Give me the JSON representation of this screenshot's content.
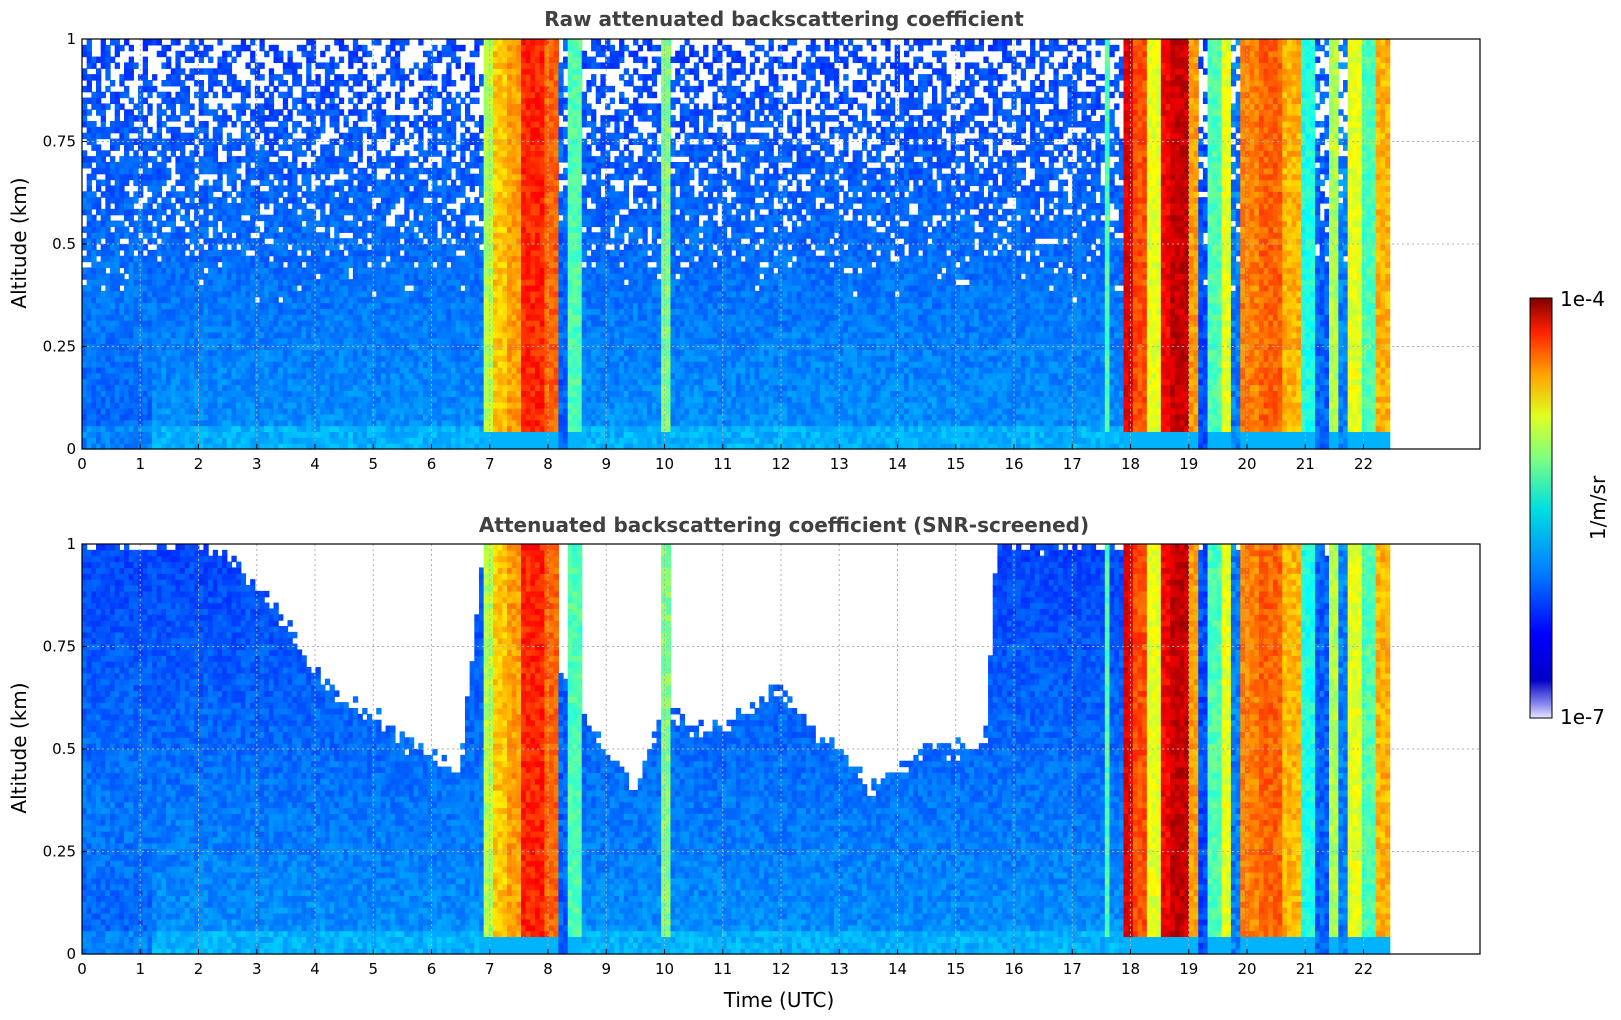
{
  "colors": {
    "title": "#404040",
    "grid": "#b0b0b0",
    "colormap": "jet"
  },
  "colorbar": {
    "label": "1/m/sr",
    "max_label": "1e-4",
    "min_label": "1e-7",
    "range": [
      1e-07,
      0.0001
    ],
    "scale": "log"
  },
  "chart_data": [
    {
      "type": "heatmap",
      "title": "Raw attenuated backscattering coefficient",
      "xlabel": "",
      "ylabel": "Altitude (km)",
      "xlim": [
        0,
        24
      ],
      "ylim": [
        0,
        1
      ],
      "grid": true,
      "x_ticks": [
        "0",
        "1",
        "2",
        "3",
        "4",
        "5",
        "6",
        "7",
        "8",
        "9",
        "10",
        "11",
        "12",
        "13",
        "14",
        "15",
        "16",
        "17",
        "18",
        "19",
        "20",
        "21",
        "22"
      ],
      "y_ticks": [
        "0",
        "0.25",
        "0.5",
        "0.75",
        "1"
      ],
      "data_end_hour": 22.45,
      "screened": false,
      "profiles": [
        {
          "hours": [
            0,
            6.9
          ],
          "level": "low-blue",
          "noise_above_km": 0.35
        },
        {
          "hours": [
            6.9,
            7.3
          ],
          "level": "green-yellow"
        },
        {
          "hours": [
            7.3,
            8.2
          ],
          "level": "orange-red"
        },
        {
          "hours": [
            8.2,
            8.4
          ],
          "level": "blue"
        },
        {
          "hours": [
            8.4,
            8.6
          ],
          "level": "cyan"
        },
        {
          "hours": [
            10.0,
            10.1
          ],
          "level": "cyan-green"
        },
        {
          "hours": [
            17.9,
            19.2
          ],
          "level": "red-darkred"
        },
        {
          "hours": [
            19.4,
            19.7
          ],
          "level": "cyan-yellow"
        },
        {
          "hours": [
            19.8,
            21.0
          ],
          "level": "yellow-orange"
        },
        {
          "hours": [
            21.0,
            22.45
          ],
          "level": "mixed-blue-yellow"
        }
      ]
    },
    {
      "type": "heatmap",
      "title": "Attenuated backscattering coefficient (SNR-screened)",
      "xlabel": "Time (UTC)",
      "ylabel": "Altitude (km)",
      "xlim": [
        0,
        24
      ],
      "ylim": [
        0,
        1
      ],
      "grid": true,
      "x_ticks": [
        "0",
        "1",
        "2",
        "3",
        "4",
        "5",
        "6",
        "7",
        "8",
        "9",
        "10",
        "11",
        "12",
        "13",
        "14",
        "15",
        "16",
        "17",
        "18",
        "19",
        "20",
        "21",
        "22"
      ],
      "y_ticks": [
        "0",
        "0.25",
        "0.5",
        "0.75",
        "1"
      ],
      "data_end_hour": 22.45,
      "screened": true,
      "screen_ceiling": {
        "hours": [
          0,
          0.5,
          1,
          1.5,
          2,
          2.5,
          3,
          3.5,
          4,
          4.5,
          5,
          5.5,
          6,
          6.5,
          6.9,
          8.6,
          9,
          9.5,
          10,
          10.5,
          11,
          11.5,
          12,
          12.5,
          13,
          13.5,
          14,
          14.5,
          15,
          15.5,
          15.7,
          22.45
        ],
        "altitude_km": [
          1,
          1,
          1,
          1,
          1,
          0.97,
          0.9,
          0.8,
          0.7,
          0.62,
          0.58,
          0.52,
          0.48,
          0.46,
          1,
          0.6,
          0.5,
          0.4,
          0.6,
          0.55,
          0.55,
          0.6,
          0.65,
          0.55,
          0.5,
          0.4,
          0.45,
          0.5,
          0.5,
          0.5,
          1,
          1
        ]
      }
    }
  ]
}
